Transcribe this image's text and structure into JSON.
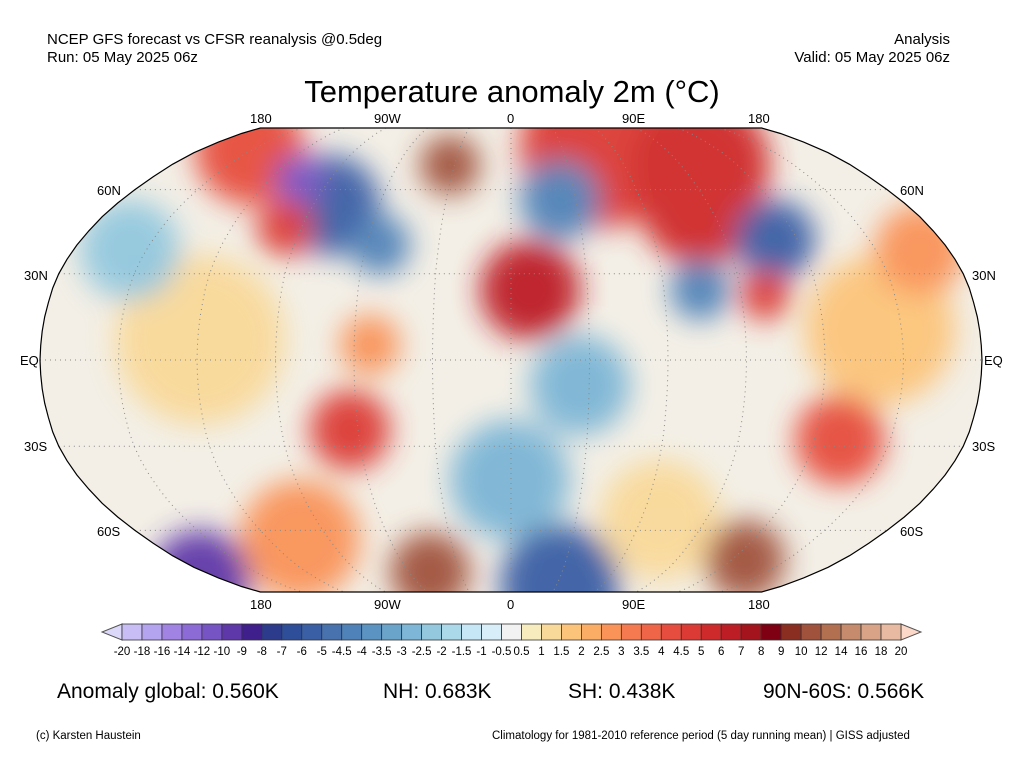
{
  "header": {
    "left_line1": "NCEP GFS forecast vs CFSR reanalysis @0.5deg",
    "left_line2": "Run: 05 May 2025 06z",
    "right_line1": "Analysis",
    "right_line2": "Valid: 05 May 2025 06z"
  },
  "title": "Temperature anomaly 2m (°C)",
  "map": {
    "projection": "Robinson",
    "lon_labels_top": [
      "180",
      "90W",
      "0",
      "90E",
      "180"
    ],
    "lon_labels_bottom": [
      "180",
      "90W",
      "0",
      "90E",
      "180"
    ],
    "lat_labels_left": [
      "60N",
      "30N",
      "EQ",
      "30S",
      "60S"
    ],
    "lat_labels_right": [
      "60N",
      "30N",
      "EQ",
      "30S",
      "60S"
    ]
  },
  "colorbar": {
    "labels": [
      "-20",
      "-18",
      "-16",
      "-14",
      "-12",
      "-10",
      "-9",
      "-8",
      "-7",
      "-6",
      "-5",
      "-4.5",
      "-4",
      "-3.5",
      "-3",
      "-2.5",
      "-2",
      "-1.5",
      "-1",
      "-0.5",
      "0.5",
      "1",
      "1.5",
      "2",
      "2.5",
      "3",
      "3.5",
      "4",
      "4.5",
      "5",
      "6",
      "7",
      "8",
      "9",
      "10",
      "12",
      "14",
      "16",
      "18",
      "20"
    ],
    "under_color": "#dcd8fa",
    "over_color": "#fcd8c8",
    "colors": [
      "#c8bef5",
      "#b4a3ef",
      "#a183e4",
      "#8c6bd6",
      "#7654c4",
      "#5e37a8",
      "#3f1f8c",
      "#2c3b8c",
      "#2f4e9a",
      "#3a5fa5",
      "#4772ae",
      "#4f82b8",
      "#5b93c2",
      "#6ba4cb",
      "#7db6d6",
      "#93c8de",
      "#acd9ea",
      "#c6e7f5",
      "#d8effa",
      "#f2f2f2",
      "#f6ecbe",
      "#f9d99a",
      "#fcc47a",
      "#fbad66",
      "#f99358",
      "#f57a50",
      "#ee6548",
      "#e64d3e",
      "#dc3a35",
      "#cf2a2b",
      "#bd1d25",
      "#a3141c",
      "#7f0012",
      "#8b2e22",
      "#a0523d",
      "#b37051",
      "#c58b6c",
      "#d8a386",
      "#e8baa1"
    ]
  },
  "stats": {
    "global": "Anomaly global: 0.560K",
    "nh": "NH: 0.683K",
    "sh": "SH: 0.438K",
    "band": "90N-60S: 0.566K"
  },
  "footer": {
    "credit": "(c) Karsten Haustein",
    "note": "Climatology for 1981-2010 reference period (5 day running mean) | GISS adjusted"
  }
}
